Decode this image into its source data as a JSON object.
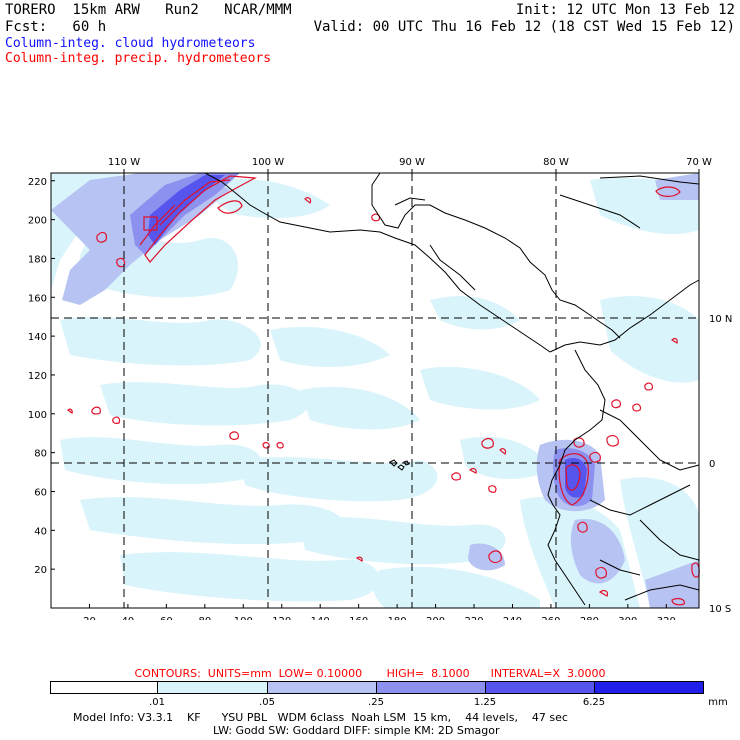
{
  "header": {
    "left_line1": "TORERO  15km ARW   Run2   NCAR/MMM",
    "left_line2": "Fcst:   60 h",
    "right_line1": "Init: 12 UTC Mon 13 Feb 12",
    "right_line2": "Valid: 00 UTC Thu 16 Feb 12 (18 CST Wed 15 Feb 12)",
    "field1": "Column-integ. cloud hydrometeors",
    "field2": "Column-integ. precip. hydrometeors",
    "field1_color": "#1010ff",
    "field2_color": "#ff0000"
  },
  "map": {
    "top_lon_labels": [
      "110 W",
      "100 W",
      "90 W",
      "80 W",
      "70 W"
    ],
    "right_lat_labels": [
      "10 N",
      "0",
      "10 S"
    ],
    "left_y_ticks": [
      "20",
      "40",
      "60",
      "80",
      "100",
      "120",
      "140",
      "160",
      "180",
      "200",
      "220"
    ],
    "bottom_x_ticks": [
      "20",
      "40",
      "60",
      "80",
      "100",
      "120",
      "140",
      "160",
      "180",
      "200",
      "220",
      "240",
      "260",
      "280",
      "300",
      "320"
    ],
    "fill_colors": [
      "#ffffff",
      "#d9f4fa",
      "#b7c4f3",
      "#8c90ee",
      "#5656ef",
      "#2020ea"
    ],
    "contour_color": "#e0102a",
    "coast_color": "#000000"
  },
  "legend": {
    "contours_line": "CONTOURS:  UNITS=mm  LOW= 0.10000       HIGH=  8.1000      INTERVAL=X  3.0000",
    "levels": [
      ".01",
      ".05",
      ".25",
      "1.25",
      "6.25"
    ],
    "units": "mm"
  },
  "model_info": {
    "line1": "Model Info: V3.3.1    KF      YSU PBL   WDM 6class  Noah LSM  15 km,    44 levels,    47 sec",
    "line2": "LW: Godd SW: Goddard DIFF: simple KM: 2D Smagor"
  }
}
